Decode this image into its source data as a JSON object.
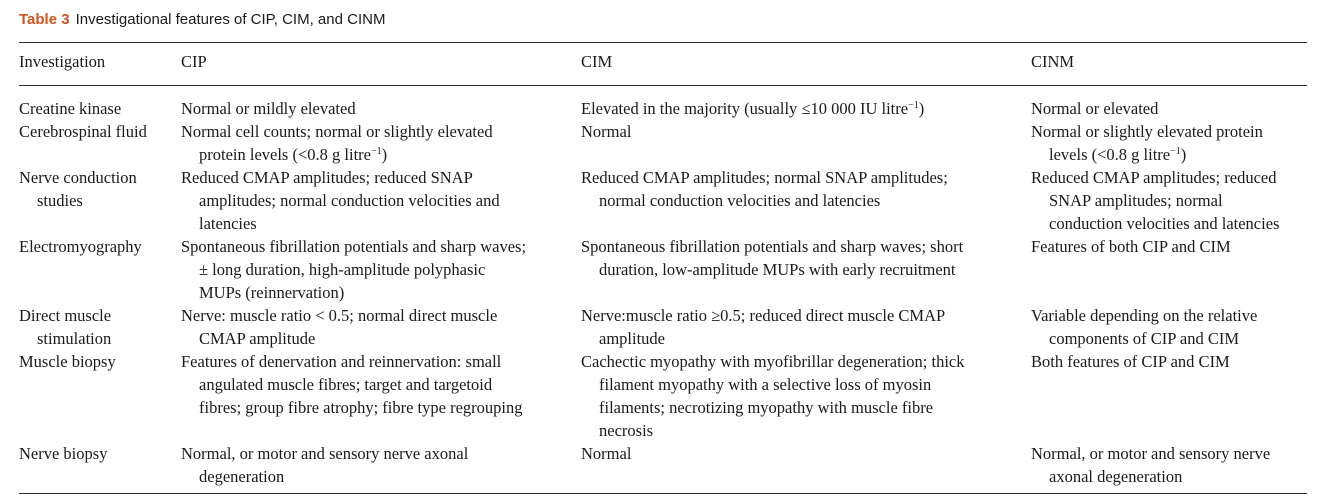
{
  "caption": {
    "label": "Table 3",
    "title": "Investigational features of CIP, CIM, and CINM"
  },
  "headers": [
    "Investigation",
    "CIP",
    "CIM",
    "CINM"
  ],
  "rows": [
    {
      "investigation": [
        "Creatine kinase"
      ],
      "cip": [
        "Normal or mildly elevated"
      ],
      "cim": [
        "Elevated in the majority (usually ≤10 000 IU litre⁻¹)"
      ],
      "cinm": [
        "Normal or elevated"
      ]
    },
    {
      "investigation": [
        "Cerebrospinal fluid"
      ],
      "cip": [
        "Normal cell counts; normal or slightly elevated",
        "protein levels (<0.8 g litre⁻¹)"
      ],
      "cim": [
        "Normal"
      ],
      "cinm": [
        "Normal or slightly elevated protein",
        "levels (<0.8 g litre⁻¹)"
      ]
    },
    {
      "investigation": [
        "Nerve conduction",
        "studies"
      ],
      "cip": [
        "Reduced CMAP amplitudes; reduced SNAP",
        "amplitudes; normal conduction velocities and",
        "latencies"
      ],
      "cim": [
        "Reduced CMAP amplitudes; normal SNAP amplitudes;",
        "normal conduction velocities and latencies"
      ],
      "cinm": [
        "Reduced CMAP amplitudes; reduced",
        "SNAP amplitudes; normal",
        "conduction velocities and latencies"
      ]
    },
    {
      "investigation": [
        "Electromyography"
      ],
      "cip": [
        "Spontaneous fibrillation potentials and sharp waves;",
        "± long duration, high-amplitude polyphasic",
        "MUPs (reinnervation)"
      ],
      "cim": [
        "Spontaneous fibrillation potentials and sharp waves; short",
        "duration, low-amplitude MUPs with early recruitment"
      ],
      "cinm": [
        "Features of both CIP and CIM"
      ]
    },
    {
      "investigation": [
        "Direct muscle",
        "stimulation"
      ],
      "cip": [
        "Nerve: muscle ratio < 0.5; normal direct muscle",
        "CMAP amplitude"
      ],
      "cim": [
        "Nerve:muscle ratio ≥0.5; reduced direct muscle CMAP",
        "amplitude"
      ],
      "cinm": [
        "Variable depending on the relative",
        "components of CIP and CIM"
      ]
    },
    {
      "investigation": [
        "Muscle biopsy"
      ],
      "cip": [
        "Features of denervation and reinnervation: small",
        "angulated muscle fibres; target and targetoid",
        "fibres; group fibre atrophy; fibre type regrouping"
      ],
      "cim": [
        "Cachectic myopathy with myofibrillar degeneration; thick",
        "filament myopathy with a selective loss of myosin",
        "filaments; necrotizing myopathy with muscle fibre",
        "necrosis"
      ],
      "cinm": [
        "Both features of CIP and CIM"
      ]
    },
    {
      "investigation": [
        "Nerve biopsy"
      ],
      "cip": [
        "Normal, or motor and sensory nerve axonal",
        "degeneration"
      ],
      "cim": [
        "Normal"
      ],
      "cinm": [
        "Normal, or motor and sensory nerve",
        "axonal degeneration"
      ]
    }
  ]
}
